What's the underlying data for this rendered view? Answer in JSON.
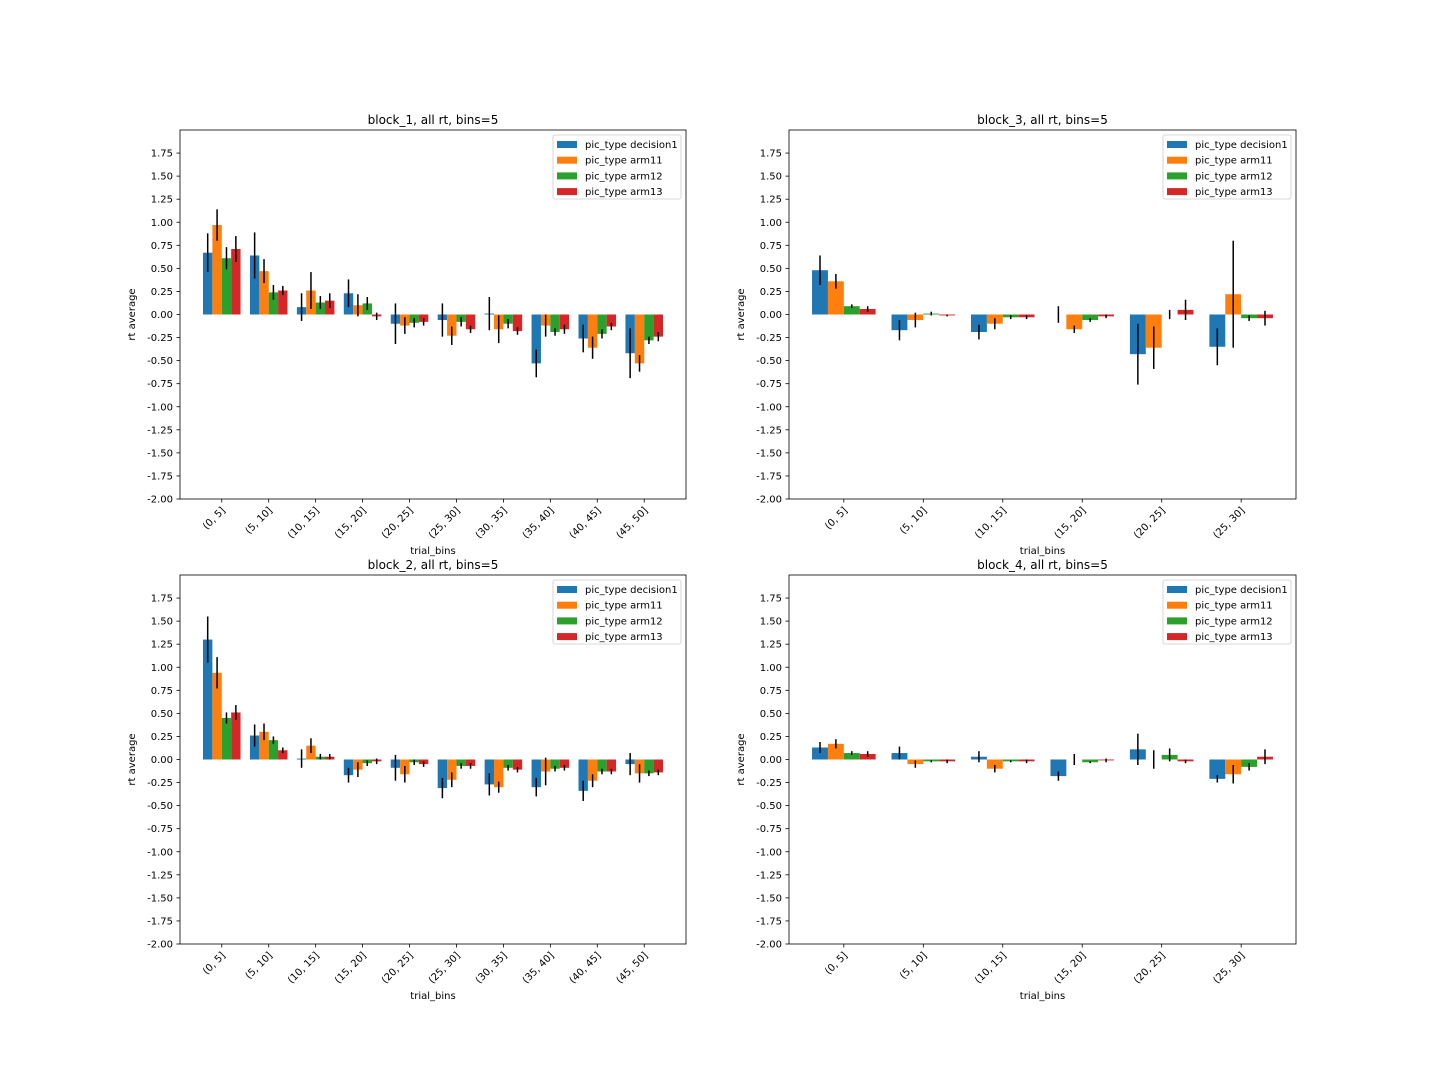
{
  "figure": {
    "background": "#ffffff"
  },
  "colors": {
    "pic_type decision1": "#1f77b4",
    "pic_type arm11": "#ff7f0e",
    "pic_type arm12": "#2ca02c",
    "pic_type arm13": "#d62728",
    "error_bar": "#000000"
  },
  "chart_data": [
    {
      "type": "bar",
      "title": "block_1, all rt, bins=5",
      "xlabel": "trial_bins",
      "ylabel": "rt average",
      "ylim": [
        -2.0,
        2.0
      ],
      "yticks": [
        "-2.00",
        "-1.75",
        "-1.50",
        "-1.25",
        "-1.00",
        "-0.75",
        "-0.50",
        "-0.25",
        "0.00",
        "0.25",
        "0.50",
        "0.75",
        "1.00",
        "1.25",
        "1.50",
        "1.75"
      ],
      "grid": false,
      "legend": "top-right",
      "categories": [
        "(0, 5]",
        "(5, 10]",
        "(10, 15]",
        "(15, 20]",
        "(20, 25]",
        "(25, 30]",
        "(30, 35]",
        "(35, 40]",
        "(40, 45]",
        "(45, 50]"
      ],
      "series": [
        {
          "name": "pic_type decision1",
          "values": [
            0.67,
            0.64,
            0.08,
            0.23,
            -0.1,
            -0.06,
            0.01,
            -0.53,
            -0.26,
            -0.42
          ],
          "errors": [
            0.21,
            0.25,
            0.15,
            0.15,
            0.22,
            0.18,
            0.18,
            0.15,
            0.15,
            0.27
          ]
        },
        {
          "name": "pic_type arm11",
          "values": [
            0.97,
            0.47,
            0.26,
            0.1,
            -0.12,
            -0.23,
            -0.16,
            -0.12,
            -0.36,
            -0.53
          ],
          "errors": [
            0.17,
            0.13,
            0.2,
            0.12,
            0.09,
            0.1,
            0.15,
            0.12,
            0.12,
            0.09
          ]
        },
        {
          "name": "pic_type arm12",
          "values": [
            0.61,
            0.24,
            0.13,
            0.12,
            -0.09,
            -0.08,
            -0.1,
            -0.19,
            -0.21,
            -0.28
          ],
          "errors": [
            0.12,
            0.08,
            0.07,
            0.07,
            0.05,
            0.05,
            0.05,
            0.04,
            0.05,
            0.04
          ]
        },
        {
          "name": "pic_type arm13",
          "values": [
            0.71,
            0.26,
            0.15,
            -0.02,
            -0.08,
            -0.16,
            -0.18,
            -0.16,
            -0.13,
            -0.24
          ],
          "errors": [
            0.14,
            0.05,
            0.08,
            0.04,
            0.04,
            0.04,
            0.04,
            0.05,
            0.04,
            0.05
          ]
        }
      ]
    },
    {
      "type": "bar",
      "title": "block_3, all rt, bins=5",
      "xlabel": "trial_bins",
      "ylabel": "rt average",
      "ylim": [
        -2.0,
        2.0
      ],
      "yticks": [
        "-2.00",
        "-1.75",
        "-1.50",
        "-1.25",
        "-1.00",
        "-0.75",
        "-0.50",
        "-0.25",
        "0.00",
        "0.25",
        "0.50",
        "0.75",
        "1.00",
        "1.25",
        "1.50",
        "1.75"
      ],
      "grid": false,
      "legend": "top-right",
      "categories": [
        "(0, 5]",
        "(5, 10]",
        "(10, 15]",
        "(15, 20]",
        "(20, 25]",
        "(25, 30]"
      ],
      "series": [
        {
          "name": "pic_type decision1",
          "values": [
            0.48,
            -0.17,
            -0.19,
            0.0,
            -0.43,
            -0.35
          ],
          "errors": [
            0.16,
            0.11,
            0.08,
            0.09,
            0.33,
            0.2
          ]
        },
        {
          "name": "pic_type arm11",
          "values": [
            0.36,
            -0.06,
            -0.1,
            -0.16,
            -0.36,
            0.22
          ],
          "errors": [
            0.08,
            0.08,
            0.06,
            0.04,
            0.23,
            0.58
          ]
        },
        {
          "name": "pic_type arm12",
          "values": [
            0.09,
            0.01,
            -0.03,
            -0.06,
            0.0,
            -0.04
          ],
          "errors": [
            0.02,
            0.02,
            0.02,
            0.02,
            0.05,
            0.03
          ]
        },
        {
          "name": "pic_type arm13",
          "values": [
            0.06,
            -0.01,
            -0.03,
            -0.02,
            0.05,
            -0.04
          ],
          "errors": [
            0.03,
            0.01,
            0.02,
            0.02,
            0.11,
            0.08
          ]
        }
      ]
    },
    {
      "type": "bar",
      "title": "block_2, all rt, bins=5",
      "xlabel": "trial_bins",
      "ylabel": "rt average",
      "ylim": [
        -2.0,
        2.0
      ],
      "yticks": [
        "-2.00",
        "-1.75",
        "-1.50",
        "-1.25",
        "-1.00",
        "-0.75",
        "-0.50",
        "-0.25",
        "0.00",
        "0.25",
        "0.50",
        "0.75",
        "1.00",
        "1.25",
        "1.50",
        "1.75"
      ],
      "grid": false,
      "legend": "top-right",
      "categories": [
        "(0, 5]",
        "(5, 10]",
        "(10, 15]",
        "(15, 20]",
        "(20, 25]",
        "(25, 30]",
        "(30, 35]",
        "(35, 40]",
        "(40, 45]",
        "(45, 50]"
      ],
      "series": [
        {
          "name": "pic_type decision1",
          "values": [
            1.3,
            0.26,
            0.01,
            -0.17,
            -0.09,
            -0.31,
            -0.27,
            -0.3,
            -0.34,
            -0.05
          ],
          "errors": [
            0.25,
            0.12,
            0.1,
            0.08,
            0.14,
            0.11,
            0.12,
            0.1,
            0.11,
            0.12
          ]
        },
        {
          "name": "pic_type arm11",
          "values": [
            0.94,
            0.3,
            0.15,
            -0.11,
            -0.16,
            -0.22,
            -0.3,
            -0.13,
            -0.23,
            -0.15
          ],
          "errors": [
            0.17,
            0.09,
            0.08,
            0.08,
            0.09,
            0.08,
            0.06,
            0.15,
            0.07,
            0.1
          ]
        },
        {
          "name": "pic_type arm12",
          "values": [
            0.45,
            0.21,
            0.03,
            -0.04,
            -0.03,
            -0.07,
            -0.09,
            -0.1,
            -0.13,
            -0.15
          ],
          "errors": [
            0.06,
            0.04,
            0.03,
            0.03,
            0.03,
            0.03,
            0.03,
            0.03,
            0.03,
            0.03
          ]
        },
        {
          "name": "pic_type arm13",
          "values": [
            0.51,
            0.1,
            0.03,
            -0.02,
            -0.05,
            -0.07,
            -0.11,
            -0.09,
            -0.13,
            -0.14
          ],
          "errors": [
            0.08,
            0.03,
            0.03,
            0.03,
            0.03,
            0.03,
            0.03,
            0.03,
            0.03,
            0.03
          ]
        }
      ]
    },
    {
      "type": "bar",
      "title": "block_4, all rt, bins=5",
      "xlabel": "trial_bins",
      "ylabel": "rt average",
      "ylim": [
        -2.0,
        2.0
      ],
      "yticks": [
        "-2.00",
        "-1.75",
        "-1.50",
        "-1.25",
        "-1.00",
        "-0.75",
        "-0.50",
        "-0.25",
        "0.00",
        "0.25",
        "0.50",
        "0.75",
        "1.00",
        "1.25",
        "1.50",
        "1.75"
      ],
      "grid": false,
      "legend": "top-right",
      "categories": [
        "(0, 5]",
        "(5, 10]",
        "(10, 15]",
        "(15, 20]",
        "(20, 25]",
        "(25, 30]"
      ],
      "series": [
        {
          "name": "pic_type decision1",
          "values": [
            0.13,
            0.07,
            0.03,
            -0.18,
            0.11,
            -0.21
          ],
          "errors": [
            0.06,
            0.07,
            0.06,
            0.05,
            0.17,
            0.04
          ]
        },
        {
          "name": "pic_type arm11",
          "values": [
            0.17,
            -0.05,
            -0.1,
            0.0,
            0.0,
            -0.16
          ],
          "errors": [
            0.05,
            0.04,
            0.04,
            0.06,
            0.1,
            0.1
          ]
        },
        {
          "name": "pic_type arm12",
          "values": [
            0.07,
            -0.02,
            -0.02,
            -0.03,
            0.05,
            -0.08
          ],
          "errors": [
            0.02,
            0.01,
            0.01,
            0.01,
            0.07,
            0.04
          ]
        },
        {
          "name": "pic_type arm13",
          "values": [
            0.06,
            -0.02,
            -0.02,
            -0.01,
            -0.02,
            0.03
          ],
          "errors": [
            0.03,
            0.02,
            0.02,
            0.02,
            0.02,
            0.08
          ]
        }
      ]
    }
  ]
}
